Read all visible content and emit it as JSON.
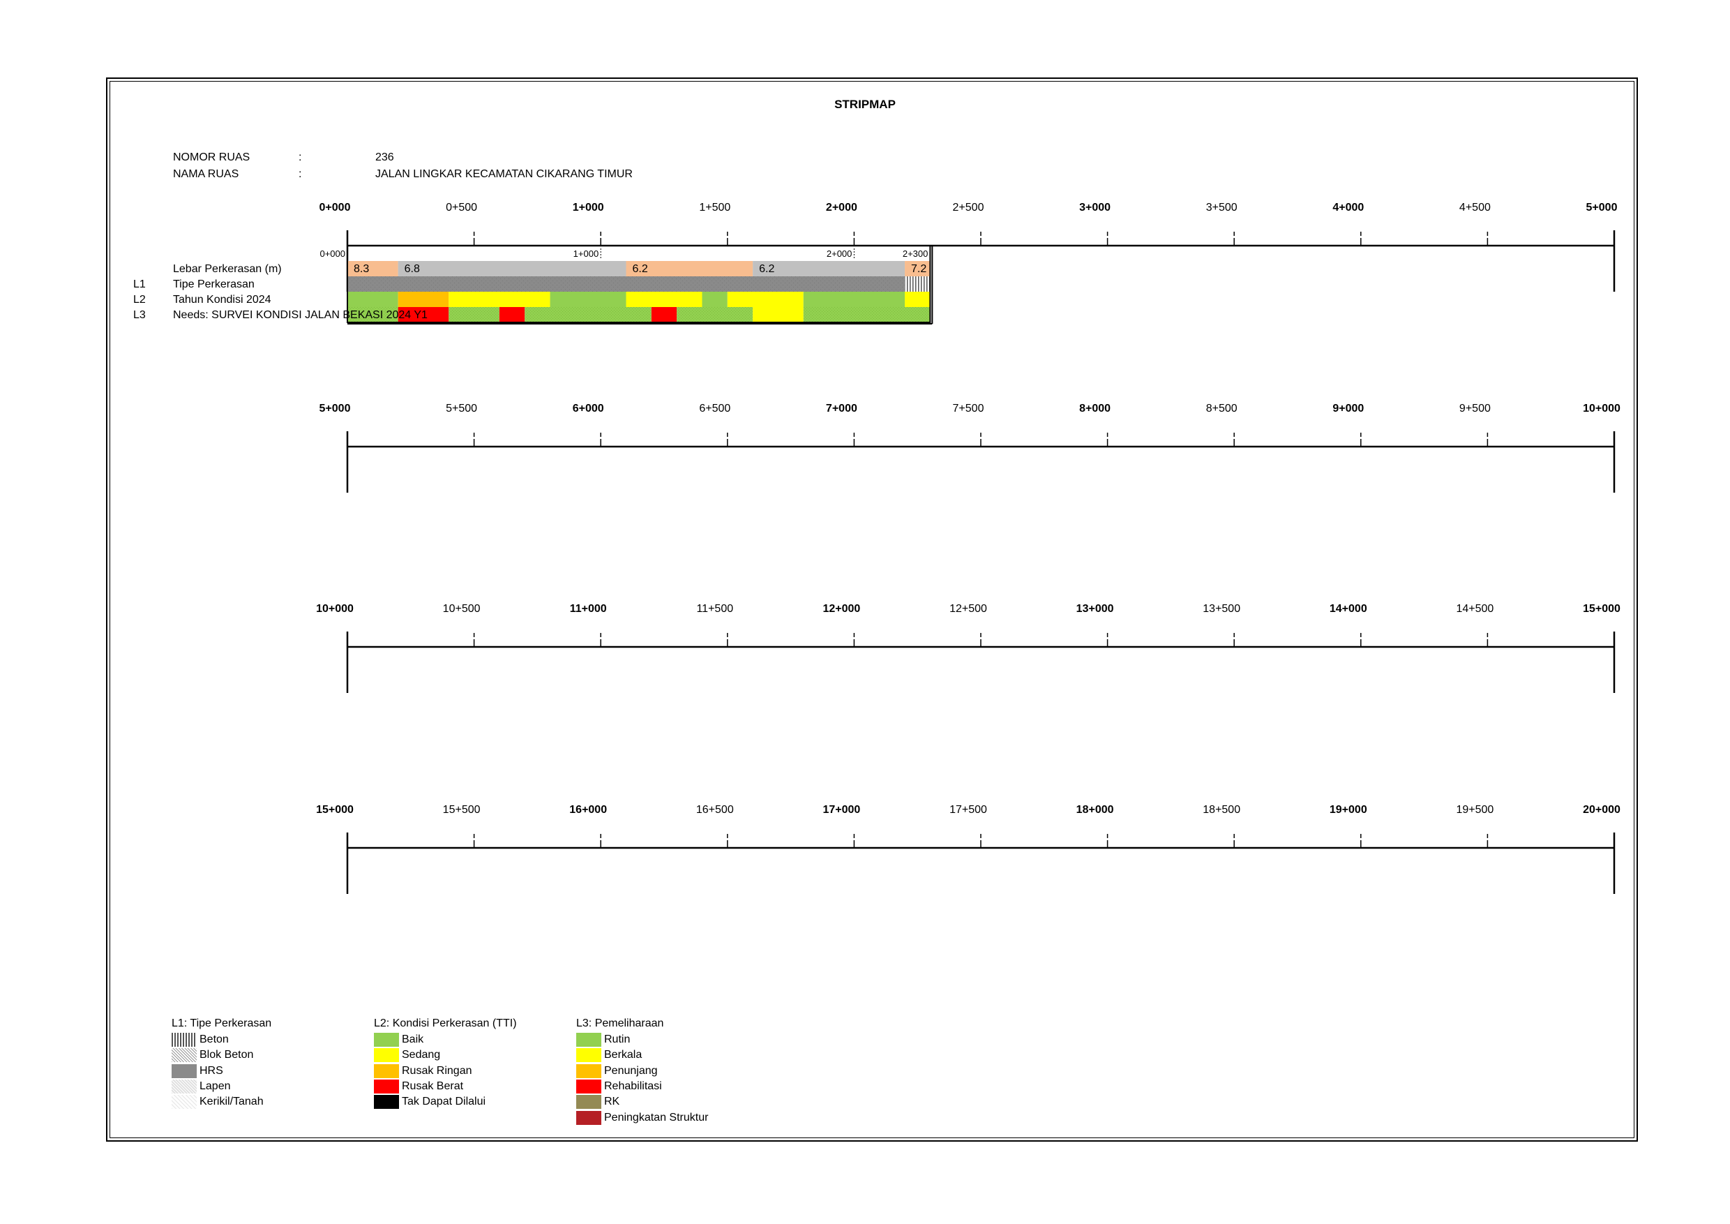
{
  "title": "STRIPMAP",
  "info": {
    "nomor_label": "NOMOR RUAS",
    "nomor_colon": ":",
    "nomor_value": "236",
    "nama_label": "NAMA RUAS",
    "nama_colon": ":",
    "nama_value": "JALAN LINGKAR KECAMATAN CIKARANG TIMUR"
  },
  "rows": [
    {
      "labels": [
        "0+000",
        "0+500",
        "1+000",
        "1+500",
        "2+000",
        "2+500",
        "3+000",
        "3+500",
        "4+000",
        "4+500",
        "5+000"
      ]
    },
    {
      "labels": [
        "5+000",
        "5+500",
        "6+000",
        "6+500",
        "7+000",
        "7+500",
        "8+000",
        "8+500",
        "9+000",
        "9+500",
        "10+000"
      ]
    },
    {
      "labels": [
        "10+000",
        "10+500",
        "11+000",
        "11+500",
        "12+000",
        "12+500",
        "13+000",
        "13+500",
        "14+000",
        "14+500",
        "15+000"
      ]
    },
    {
      "labels": [
        "15+000",
        "15+500",
        "16+000",
        "16+500",
        "17+000",
        "17+500",
        "18+000",
        "18+500",
        "19+000",
        "19+500",
        "20+000"
      ]
    }
  ],
  "road": {
    "start_km": 0,
    "end_km": 2.3,
    "small_markers": [
      "0+000",
      "1+000",
      "2+000",
      "2+300"
    ],
    "row_labels": [
      {
        "prefix": "",
        "label": "Lebar Perkerasan (m)"
      },
      {
        "prefix": "L1",
        "label": "Tipe Perkerasan"
      },
      {
        "prefix": "L2",
        "label": "Tahun Kondisi 2024"
      },
      {
        "prefix": "L3",
        "label": "Needs: SURVEI KONDISI JALAN BEKASI 2024 Y1"
      }
    ],
    "lebar": [
      {
        "from": 0.0,
        "to": 0.2,
        "value": "8.3",
        "color": "#f8bd8f"
      },
      {
        "from": 0.2,
        "to": 1.1,
        "value": "6.8",
        "color": "#c0c0c0"
      },
      {
        "from": 1.1,
        "to": 1.6,
        "value": "6.2",
        "color": "#f8bd8f"
      },
      {
        "from": 1.6,
        "to": 2.2,
        "value": "6.2",
        "color": "#c0c0c0"
      },
      {
        "from": 2.2,
        "to": 2.3,
        "value": "7.2",
        "color": "#f8bd8f"
      }
    ],
    "tipe": [
      {
        "from": 0.0,
        "to": 2.2,
        "type": "HRS"
      },
      {
        "from": 2.2,
        "to": 2.3,
        "type": "Beton"
      }
    ],
    "kondisi": [
      {
        "from": 0.0,
        "to": 0.2,
        "color": "#92d050"
      },
      {
        "from": 0.2,
        "to": 0.4,
        "color": "#ffc000"
      },
      {
        "from": 0.4,
        "to": 0.8,
        "color": "#ffff00"
      },
      {
        "from": 0.8,
        "to": 1.1,
        "color": "#92d050"
      },
      {
        "from": 1.1,
        "to": 1.4,
        "color": "#ffff00"
      },
      {
        "from": 1.4,
        "to": 1.5,
        "color": "#92d050"
      },
      {
        "from": 1.5,
        "to": 1.8,
        "color": "#ffff00"
      },
      {
        "from": 1.8,
        "to": 2.2,
        "color": "#92d050"
      },
      {
        "from": 2.2,
        "to": 2.3,
        "color": "#ffff00"
      }
    ],
    "needs": [
      {
        "from": 0.0,
        "to": 0.2,
        "color": "#92d050"
      },
      {
        "from": 0.2,
        "to": 0.4,
        "color": "#ff0000"
      },
      {
        "from": 0.4,
        "to": 0.6,
        "color": "#92d050"
      },
      {
        "from": 0.6,
        "to": 0.7,
        "color": "#ff0000"
      },
      {
        "from": 0.7,
        "to": 1.2,
        "color": "#92d050"
      },
      {
        "from": 1.2,
        "to": 1.3,
        "color": "#ff0000"
      },
      {
        "from": 1.3,
        "to": 1.6,
        "color": "#92d050"
      },
      {
        "from": 1.6,
        "to": 1.8,
        "color": "#ffff00"
      },
      {
        "from": 1.8,
        "to": 2.3,
        "color": "#92d050"
      }
    ]
  },
  "legend": {
    "l1": {
      "title": "L1: Tipe Perkerasan",
      "items": [
        {
          "label": "Beton",
          "pattern": "beton"
        },
        {
          "label": "Blok Beton",
          "pattern": "blok-beton"
        },
        {
          "label": "HRS",
          "pattern": "hrs"
        },
        {
          "label": "Lapen",
          "pattern": "lapen"
        },
        {
          "label": "Kerikil/Tanah",
          "pattern": "kerikil"
        }
      ]
    },
    "l2": {
      "title": "L2: Kondisi Perkerasan (TTI)",
      "items": [
        {
          "label": "Baik",
          "color": "#92d050"
        },
        {
          "label": "Sedang",
          "color": "#ffff00"
        },
        {
          "label": "Rusak Ringan",
          "color": "#ffc000"
        },
        {
          "label": "Rusak Berat",
          "color": "#ff0000"
        },
        {
          "label": "Tak Dapat Dilalui",
          "color": "#000000"
        }
      ]
    },
    "l3": {
      "title": "L3: Pemeliharaan",
      "items": [
        {
          "label": "Rutin",
          "color": "#92d050"
        },
        {
          "label": "Berkala",
          "color": "#ffff00"
        },
        {
          "label": "Penunjang",
          "color": "#ffc000"
        },
        {
          "label": "Rehabilitasi",
          "color": "#ff0000"
        },
        {
          "label": "RK",
          "color": "#948a54"
        },
        {
          "label": "Peningkatan Struktur",
          "color": "#b52025"
        }
      ]
    }
  }
}
